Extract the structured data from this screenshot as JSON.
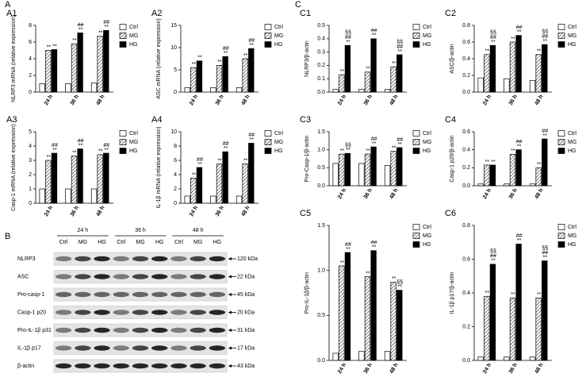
{
  "sections": [
    "A",
    "B",
    "C"
  ],
  "chart_data": [
    {
      "type": "bar",
      "panel_label": "A1",
      "ylabel": "NLRP3 mRNA (relative expression)",
      "categories": [
        "24 h",
        "36 h",
        "48 h"
      ],
      "ylim": [
        0,
        8
      ],
      "yticks": [
        0,
        2,
        4,
        6,
        8
      ],
      "series": [
        {
          "name": "Ctrl",
          "color": "#ffffff",
          "values": [
            1,
            1,
            1.1
          ]
        },
        {
          "name": "MG",
          "color": "#ffffff",
          "pattern": "hatch",
          "values": [
            5,
            5.8,
            6.7
          ],
          "annotations": [
            [
              "**"
            ],
            [
              "**"
            ],
            [
              "**"
            ]
          ]
        },
        {
          "name": "HG",
          "color": "#000000",
          "values": [
            5.1,
            7.1,
            7.4
          ],
          "annotations": [
            [
              "**"
            ],
            [
              "##",
              "**"
            ],
            [
              "##",
              "**"
            ]
          ]
        }
      ]
    },
    {
      "type": "bar",
      "panel_label": "A2",
      "ylabel": "ASC mRNA (relative expression)",
      "categories": [
        "24 h",
        "36 h",
        "48 h"
      ],
      "ylim": [
        0,
        15
      ],
      "yticks": [
        0,
        5,
        10,
        15
      ],
      "series": [
        {
          "name": "Ctrl",
          "color": "#ffffff",
          "values": [
            1,
            1,
            1
          ]
        },
        {
          "name": "MG",
          "color": "#ffffff",
          "pattern": "hatch",
          "values": [
            5.5,
            6,
            7.5
          ],
          "annotations": [
            [
              "**"
            ],
            [
              "**"
            ],
            [
              "**"
            ]
          ]
        },
        {
          "name": "HG",
          "color": "#000000",
          "values": [
            7,
            8,
            9.8
          ],
          "annotations": [
            [
              "**"
            ],
            [
              "##",
              "**"
            ],
            [
              "##",
              "**"
            ]
          ]
        }
      ]
    },
    {
      "type": "bar",
      "panel_label": "A3",
      "ylabel": "Casp-1 mRNA (relative expression)",
      "categories": [
        "24 h",
        "36 h",
        "48 h"
      ],
      "ylim": [
        0,
        5
      ],
      "yticks": [
        0,
        1,
        2,
        3,
        4,
        5
      ],
      "series": [
        {
          "name": "Ctrl",
          "color": "#ffffff",
          "values": [
            1,
            1,
            1
          ]
        },
        {
          "name": "MG",
          "color": "#ffffff",
          "pattern": "hatch",
          "values": [
            3,
            3.3,
            3.4
          ],
          "annotations": [
            [
              "**"
            ],
            [
              "**"
            ],
            [
              "**"
            ]
          ]
        },
        {
          "name": "HG",
          "color": "#000000",
          "values": [
            3.5,
            3.8,
            3.5
          ],
          "annotations": [
            [
              "##",
              "**"
            ],
            [
              "##",
              "**"
            ],
            [
              "##",
              "**"
            ]
          ]
        }
      ]
    },
    {
      "type": "bar",
      "panel_label": "A4",
      "ylabel": "IL-1β mRNA (relative expression)",
      "categories": [
        "24 h",
        "36 h",
        "48 h"
      ],
      "ylim": [
        0,
        10
      ],
      "yticks": [
        0,
        2,
        4,
        6,
        8,
        10
      ],
      "series": [
        {
          "name": "Ctrl",
          "color": "#ffffff",
          "values": [
            1,
            1,
            1
          ]
        },
        {
          "name": "MG",
          "color": "#ffffff",
          "pattern": "hatch",
          "values": [
            3.5,
            5.5,
            5.5
          ],
          "annotations": [
            [
              "**"
            ],
            [
              "**"
            ],
            [
              "**"
            ]
          ]
        },
        {
          "name": "HG",
          "color": "#000000",
          "values": [
            5,
            7.2,
            8.4
          ],
          "annotations": [
            [
              "##",
              "**"
            ],
            [
              "##",
              "**"
            ],
            [
              "##",
              "**"
            ]
          ]
        }
      ]
    },
    {
      "type": "bar",
      "panel_label": "C1",
      "ylabel": "NLRP3/β-actin",
      "categories": [
        "24 h",
        "36 h",
        "48 h"
      ],
      "ylim": [
        0,
        0.5
      ],
      "yticks": [
        {
          "value": 0,
          "label": "0.0"
        },
        0.1,
        0.2,
        0.3,
        0.4,
        0.5
      ],
      "series": [
        {
          "name": "Ctrl",
          "color": "#ffffff",
          "values": [
            0.02,
            0.02,
            0.02
          ]
        },
        {
          "name": "MG",
          "color": "#ffffff",
          "pattern": "hatch",
          "values": [
            0.13,
            0.15,
            0.19
          ],
          "annotations": [
            [
              "**"
            ],
            [
              "**"
            ],
            [
              "**"
            ]
          ]
        },
        {
          "name": "HG",
          "color": "#000000",
          "values": [
            0.35,
            0.4,
            0.28
          ],
          "annotations": [
            [
              "§§",
              "##",
              "**"
            ],
            [
              "##",
              "**"
            ],
            [
              "§§",
              "##",
              "**"
            ]
          ]
        }
      ]
    },
    {
      "type": "bar",
      "panel_label": "C2",
      "ylabel": "ASC/β-actin",
      "categories": [
        "24 h",
        "36 h",
        "48 h"
      ],
      "ylim": [
        0,
        0.8
      ],
      "yticks": [
        {
          "value": 0,
          "label": "0.0"
        },
        0.2,
        0.4,
        0.6,
        0.8
      ],
      "series": [
        {
          "name": "Ctrl",
          "color": "#ffffff",
          "values": [
            0.17,
            0.16,
            0.14
          ]
        },
        {
          "name": "MG",
          "color": "#ffffff",
          "pattern": "hatch",
          "values": [
            0.45,
            0.6,
            0.45
          ],
          "annotations": [
            [
              "**"
            ],
            [
              "**"
            ],
            [
              "**"
            ]
          ]
        },
        {
          "name": "HG",
          "color": "#000000",
          "values": [
            0.56,
            0.68,
            0.57
          ],
          "annotations": [
            [
              "§§",
              "##",
              "**"
            ],
            [
              "##",
              "**"
            ],
            [
              "§§",
              "##",
              "**"
            ]
          ]
        }
      ]
    },
    {
      "type": "bar",
      "panel_label": "C3",
      "ylabel": "Pro-Casp-1/β-actin",
      "categories": [
        "24 h",
        "36 h",
        "48 h"
      ],
      "ylim": [
        0,
        1.5
      ],
      "yticks": [
        {
          "value": 0,
          "label": "0.0"
        },
        0.5,
        {
          "value": 1,
          "label": "1.0"
        },
        1.5
      ],
      "series": [
        {
          "name": "Ctrl",
          "color": "#ffffff",
          "values": [
            0.62,
            0.62,
            0.56
          ]
        },
        {
          "name": "MG",
          "color": "#ffffff",
          "pattern": "hatch",
          "values": [
            0.88,
            0.88,
            0.96
          ],
          "annotations": [
            [
              "**"
            ],
            [
              "**"
            ],
            [
              "**"
            ]
          ]
        },
        {
          "name": "HG",
          "color": "#000000",
          "values": [
            0.9,
            1.08,
            1.06
          ],
          "annotations": [
            [
              "§§",
              "**"
            ],
            [
              "##",
              "**"
            ],
            [
              "##",
              "**"
            ]
          ]
        }
      ]
    },
    {
      "type": "bar",
      "panel_label": "C4",
      "ylabel": "Casp-1 p20/β-actin",
      "categories": [
        "24 h",
        "36 h",
        "48 h"
      ],
      "ylim": [
        0,
        0.6
      ],
      "yticks": [
        {
          "value": 0,
          "label": "0.0"
        },
        0.2,
        0.4,
        0.6
      ],
      "series": [
        {
          "name": "Ctrl",
          "color": "#ffffff",
          "values": [
            0.02,
            0.02,
            0.02
          ]
        },
        {
          "name": "MG",
          "color": "#ffffff",
          "pattern": "hatch",
          "values": [
            0.23,
            0.35,
            0.2
          ],
          "annotations": [
            [
              "**"
            ],
            [
              "**"
            ],
            [
              "**"
            ]
          ]
        },
        {
          "name": "HG",
          "color": "#000000",
          "values": [
            0.23,
            0.4,
            0.52
          ],
          "annotations": [
            [
              "**"
            ],
            [
              "##",
              "**"
            ],
            [
              "##",
              "**"
            ]
          ]
        }
      ]
    },
    {
      "type": "bar",
      "panel_label": "C5",
      "ylabel": "Pro-IL-1β/β-actin",
      "categories": [
        "24 h",
        "36 h",
        "48 h"
      ],
      "ylim": [
        0,
        1.5
      ],
      "yticks": [
        {
          "value": 0,
          "label": "0.0"
        },
        0.5,
        {
          "value": 1,
          "label": "1.0"
        },
        1.5
      ],
      "series": [
        {
          "name": "Ctrl",
          "color": "#ffffff",
          "values": [
            0.08,
            0.1,
            0.1
          ]
        },
        {
          "name": "MG",
          "color": "#ffffff",
          "pattern": "hatch",
          "values": [
            1.05,
            0.93,
            0.87
          ],
          "annotations": [
            [
              "**"
            ],
            [
              "**"
            ],
            [
              "**"
            ]
          ]
        },
        {
          "name": "HG",
          "color": "#000000",
          "values": [
            1.2,
            1.22,
            0.78
          ],
          "annotations": [
            [
              "##",
              "**"
            ],
            [
              "##",
              "**"
            ],
            [
              "§§",
              "**"
            ]
          ]
        }
      ]
    },
    {
      "type": "bar",
      "panel_label": "C6",
      "ylabel": "IL-1β p17/β-actin",
      "categories": [
        "24 h",
        "36 h",
        "48 h"
      ],
      "ylim": [
        0,
        0.8
      ],
      "yticks": [
        {
          "value": 0,
          "label": "0.0"
        },
        0.2,
        0.4,
        0.6,
        0.8
      ],
      "series": [
        {
          "name": "Ctrl",
          "color": "#ffffff",
          "values": [
            0.02,
            0.02,
            0.02
          ]
        },
        {
          "name": "MG",
          "color": "#ffffff",
          "pattern": "hatch",
          "values": [
            0.38,
            0.37,
            0.37
          ],
          "annotations": [
            [
              "**"
            ],
            [
              "**"
            ],
            [
              "**"
            ]
          ]
        },
        {
          "name": "HG",
          "color": "#000000",
          "values": [
            0.57,
            0.69,
            0.59
          ],
          "annotations": [
            [
              "§§",
              "##",
              "**"
            ],
            [
              "##",
              "**"
            ],
            [
              "§§",
              "##",
              "**"
            ]
          ]
        }
      ]
    }
  ],
  "blot": {
    "panel_label": "B",
    "groups": [
      "24 h",
      "36 h",
      "48 h"
    ],
    "lanes": [
      "Ctrl",
      "MG",
      "HG",
      "Ctrl",
      "MG",
      "HG",
      "Ctrl",
      "MG",
      "HG"
    ],
    "rows": [
      {
        "label": "NLRP3",
        "size": "120 kDa"
      },
      {
        "label": "ASC",
        "size": "22 kDa"
      },
      {
        "label": "Pro-casp-1",
        "size": "45 kDa"
      },
      {
        "label": "Casp-1 p20",
        "size": "20 kDa"
      },
      {
        "label": "Pro-IL-1β p31",
        "size": "31 kDa"
      },
      {
        "label": "IL-1β p17",
        "size": "17 kDa"
      },
      {
        "label": "β-actin",
        "size": "43 kDa"
      }
    ]
  }
}
